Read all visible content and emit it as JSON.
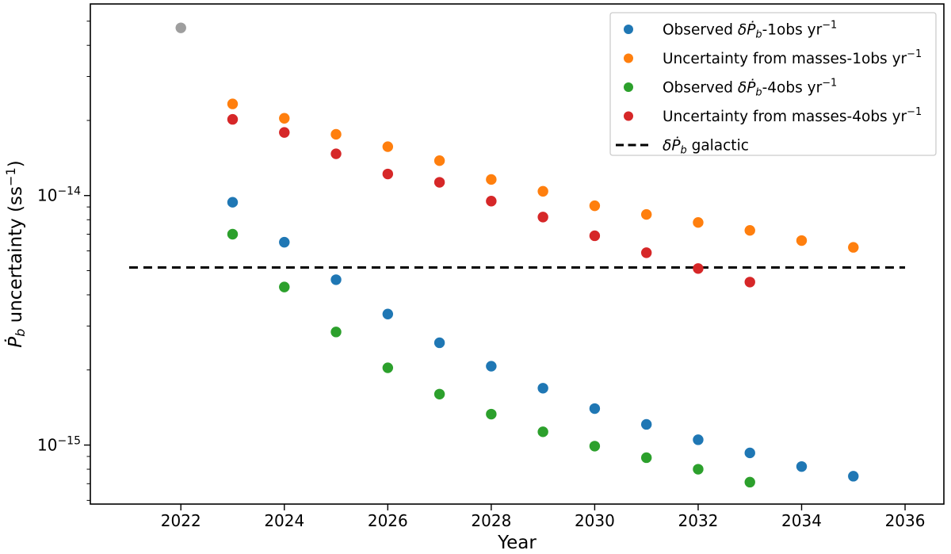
{
  "chart_data": {
    "type": "scatter",
    "title": "",
    "xlabel": "Year",
    "ylabel_text": "Ṗb uncertainty (ss−1)",
    "ylabel_segments": [
      {
        "t": "Ṗ",
        "s": "i"
      },
      {
        "t": "b",
        "s": "isub"
      },
      {
        "t": " uncertainty (ss",
        "s": ""
      },
      {
        "t": "−1",
        "s": "sup"
      },
      {
        "t": ")",
        "s": ""
      }
    ],
    "xlim": [
      2020.25,
      2036.75
    ],
    "ylim": [
      5.8e-16,
      5.86e-14
    ],
    "x_ticks": [
      {
        "label": "2022",
        "value": 2022
      },
      {
        "label": "2024",
        "value": 2024
      },
      {
        "label": "2026",
        "value": 2026
      },
      {
        "label": "2028",
        "value": 2028
      },
      {
        "label": "2030",
        "value": 2030
      },
      {
        "label": "2032",
        "value": 2032
      },
      {
        "label": "2034",
        "value": 2034
      },
      {
        "label": "2036",
        "value": 2036
      }
    ],
    "y_ticks": [
      {
        "value": 1e-14,
        "label_segments": [
          {
            "t": "10",
            "s": ""
          },
          {
            "t": "−14",
            "s": "sup"
          }
        ]
      },
      {
        "value": 1e-15,
        "label_segments": [
          {
            "t": "10",
            "s": ""
          },
          {
            "t": "−15",
            "s": "sup"
          }
        ]
      }
    ],
    "grid": false,
    "extra_points": [
      {
        "name": "gray-unlabeled-point",
        "color": "#9e9e9e",
        "year": 2022,
        "value": 4.7e-14
      }
    ],
    "series": [
      {
        "name": "observed-1obs",
        "label_text": "Observed δṖb-1obs yr−1",
        "label_segments": [
          {
            "t": "Observed ",
            "s": ""
          },
          {
            "t": "δ",
            "s": "i"
          },
          {
            "t": "Ṗ",
            "s": "i"
          },
          {
            "t": "b",
            "s": "isub"
          },
          {
            "t": "-1obs yr",
            "s": ""
          },
          {
            "t": "−1",
            "s": "sup"
          }
        ],
        "color": "#1f77b4",
        "years": [
          2023,
          2024,
          2025,
          2026,
          2027,
          2028,
          2029,
          2030,
          2031,
          2032,
          2033,
          2034,
          2035
        ],
        "values": [
          9.4e-15,
          6.5e-15,
          4.6e-15,
          3.35e-15,
          2.57e-15,
          2.07e-15,
          1.69e-15,
          1.4e-15,
          1.21e-15,
          1.05e-15,
          9.3e-16,
          8.2e-16,
          7.5e-16
        ]
      },
      {
        "name": "uncertainty-masses-1obs",
        "label_text": "Uncertainty from masses-1obs yr−1",
        "label_segments": [
          {
            "t": "Uncertainty from masses-1obs yr",
            "s": ""
          },
          {
            "t": "−1",
            "s": "sup"
          }
        ],
        "color": "#ff7f0e",
        "years": [
          2023,
          2024,
          2025,
          2026,
          2027,
          2028,
          2029,
          2030,
          2031,
          2032,
          2033,
          2034,
          2035
        ],
        "values": [
          2.33e-14,
          2.04e-14,
          1.76e-14,
          1.57e-14,
          1.38e-14,
          1.16e-14,
          1.04e-14,
          9.1e-15,
          8.4e-15,
          7.8e-15,
          7.25e-15,
          6.6e-15,
          6.2e-15
        ]
      },
      {
        "name": "observed-4obs",
        "label_text": "Observed δṖb-4obs yr−1",
        "label_segments": [
          {
            "t": "Observed ",
            "s": ""
          },
          {
            "t": "δ",
            "s": "i"
          },
          {
            "t": "Ṗ",
            "s": "i"
          },
          {
            "t": "b",
            "s": "isub"
          },
          {
            "t": "-4obs yr",
            "s": ""
          },
          {
            "t": "−1",
            "s": "sup"
          }
        ],
        "color": "#2ca02c",
        "years": [
          2023,
          2024,
          2025,
          2026,
          2027,
          2028,
          2029,
          2030,
          2031,
          2032,
          2033
        ],
        "values": [
          7e-15,
          4.3e-15,
          2.84e-15,
          2.04e-15,
          1.6e-15,
          1.33e-15,
          1.13e-15,
          9.9e-16,
          8.9e-16,
          8e-16,
          7.1e-16
        ]
      },
      {
        "name": "uncertainty-masses-4obs",
        "label_text": "Uncertainty from masses-4obs yr−1",
        "label_segments": [
          {
            "t": "Uncertainty from masses-4obs yr",
            "s": ""
          },
          {
            "t": "−1",
            "s": "sup"
          }
        ],
        "color": "#d62728",
        "years": [
          2023,
          2024,
          2025,
          2026,
          2027,
          2028,
          2029,
          2030,
          2031,
          2032,
          2033
        ],
        "values": [
          2.02e-14,
          1.79e-14,
          1.47e-14,
          1.22e-14,
          1.13e-14,
          9.5e-15,
          8.2e-15,
          6.9e-15,
          5.9e-15,
          5.1e-15,
          4.5e-15
        ]
      }
    ],
    "reference_line": {
      "name": "galactic-line",
      "label_text": "δṖb galactic",
      "label_segments": [
        {
          "t": "δ",
          "s": "i"
        },
        {
          "t": "Ṗ",
          "s": "i"
        },
        {
          "t": "b",
          "s": "isub"
        },
        {
          "t": " galactic",
          "s": ""
        }
      ],
      "value": 5.15e-15,
      "x_start": 2021,
      "x_end": 2036,
      "color": "#000000",
      "style": "dashed"
    },
    "legend": {
      "position": "upper-right",
      "border_color": "#cccccc",
      "background": "#ffffff"
    },
    "axis_color": "#000000"
  }
}
